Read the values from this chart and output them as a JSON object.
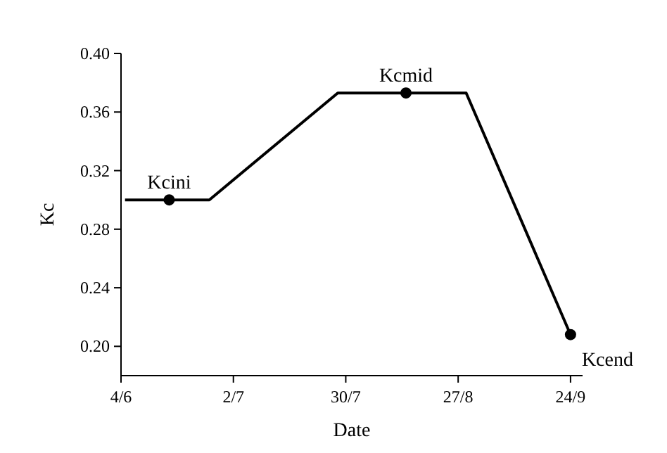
{
  "chart_data": {
    "type": "line",
    "xlabel": "Date",
    "ylabel": "Kc",
    "xlim": [
      "--06-04",
      "--09-27"
    ],
    "ylim": [
      0.18,
      0.4
    ],
    "xticks": [
      {
        "value": "--06-04",
        "label": "4/6"
      },
      {
        "value": "--07-02",
        "label": "2/7"
      },
      {
        "value": "--07-30",
        "label": "30/7"
      },
      {
        "value": "--08-27",
        "label": "27/8"
      },
      {
        "value": "--09-24",
        "label": "24/9"
      }
    ],
    "yticks": [
      {
        "value": 0.2,
        "label": "0.20"
      },
      {
        "value": 0.24,
        "label": "0.24"
      },
      {
        "value": 0.28,
        "label": "0.28"
      },
      {
        "value": 0.32,
        "label": "0.32"
      },
      {
        "value": 0.36,
        "label": "0.36"
      },
      {
        "value": 0.4,
        "label": "0.40"
      }
    ],
    "grid": false,
    "series": [
      {
        "color": "#000000",
        "marker": "none",
        "line_style": "solid",
        "x": [
          "--06-05",
          "--06-26",
          "--07-28",
          "--08-29",
          "--09-24"
        ],
        "values": [
          0.3,
          0.3,
          0.373,
          0.373,
          0.208
        ]
      },
      {
        "type": "scatter",
        "color": "#000000",
        "marker": "circle",
        "x": [
          "--06-16",
          "--08-14",
          "--09-24"
        ],
        "values": [
          0.3,
          0.373,
          0.208
        ]
      }
    ],
    "annotations": [
      {
        "text": "Kcini",
        "x": "--06-16",
        "y": 0.3
      },
      {
        "text": "Kcmid",
        "x": "--08-14",
        "y": 0.373
      },
      {
        "text": "Kcend",
        "x": "--09-24",
        "y": 0.208
      }
    ]
  }
}
